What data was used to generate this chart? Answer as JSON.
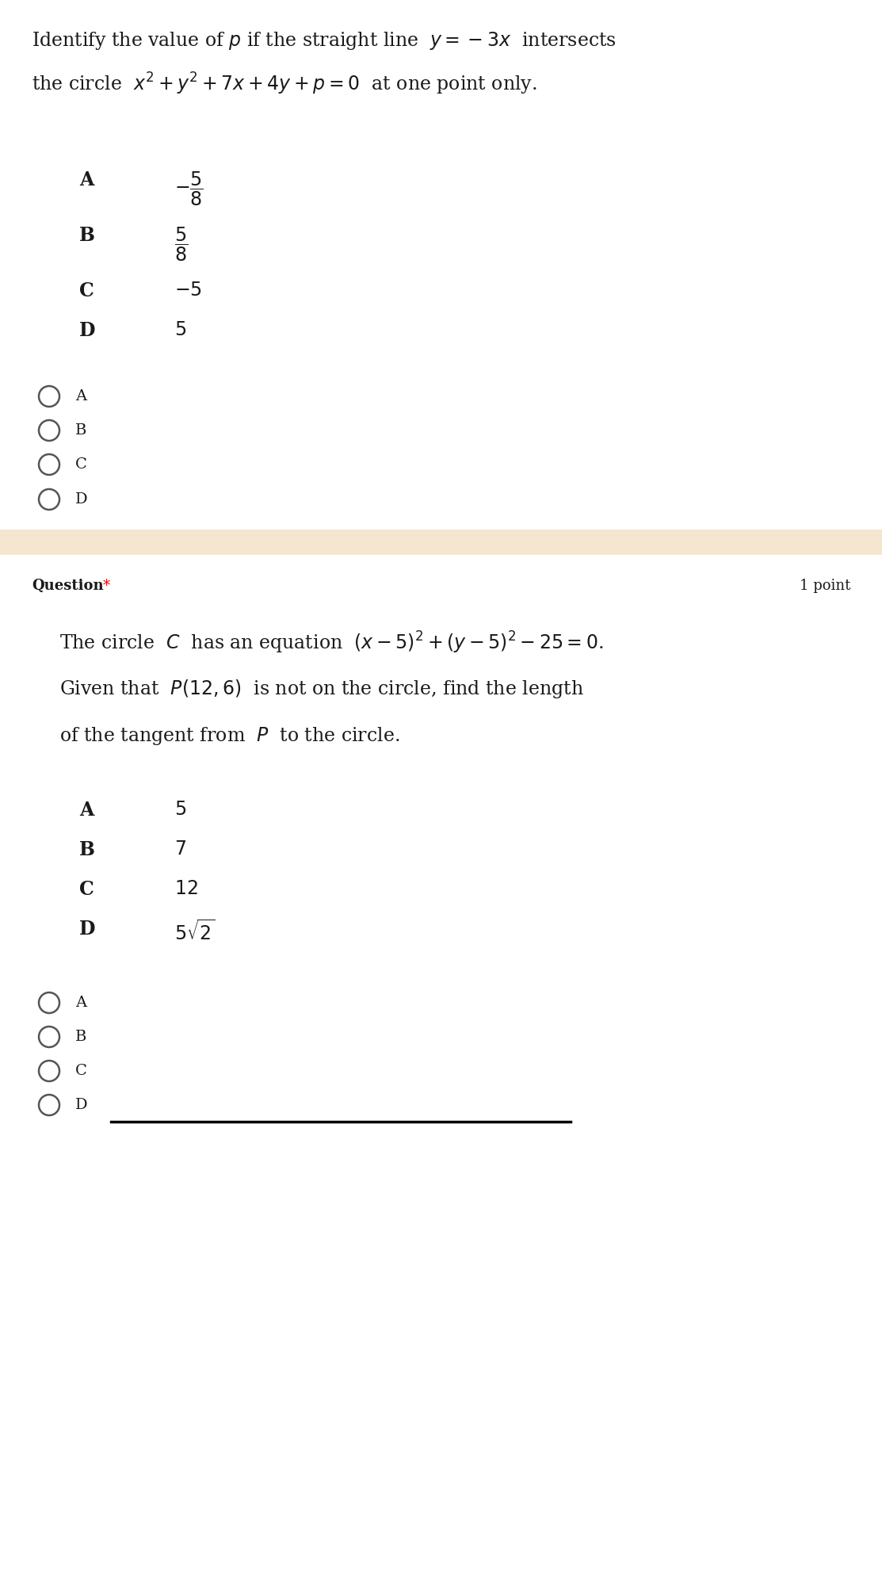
{
  "bg_color": "#ffffff",
  "separator_color": "#f5e6d0",
  "text_color": "#1a1a1a",
  "radio_color": "#555555",
  "q1_line1": "Identify the value of $p$ if the straight line  $y=-3x$  intersects",
  "q1_line2": "the circle  $x^2+y^2+7x+4y+p=0$  at one point only.",
  "q1_options_letters": [
    "A",
    "B",
    "C",
    "D"
  ],
  "q1_options_values": [
    "$-\\dfrac{5}{8}$",
    "$\\dfrac{5}{8}$",
    "$-5$",
    "$5$"
  ],
  "q1_radio_labels": [
    "A",
    "B",
    "C",
    "D"
  ],
  "q2_question_label": "Question",
  "q2_points_label": "1 point",
  "q2_line1": "The circle  $C$  has an equation  $(x-5)^2+(y-5)^2-25=0$.",
  "q2_line2": "Given that  $P(12,6)$  is not on the circle, find the length",
  "q2_line3": "of the tangent from  $P$  to the circle.",
  "q2_options_letters": [
    "A",
    "B",
    "C",
    "D"
  ],
  "q2_options_values": [
    "$5$",
    "$7$",
    "$12$",
    "$5\\sqrt{2}$"
  ],
  "q2_radio_labels": [
    "A",
    "B",
    "C",
    "D"
  ]
}
